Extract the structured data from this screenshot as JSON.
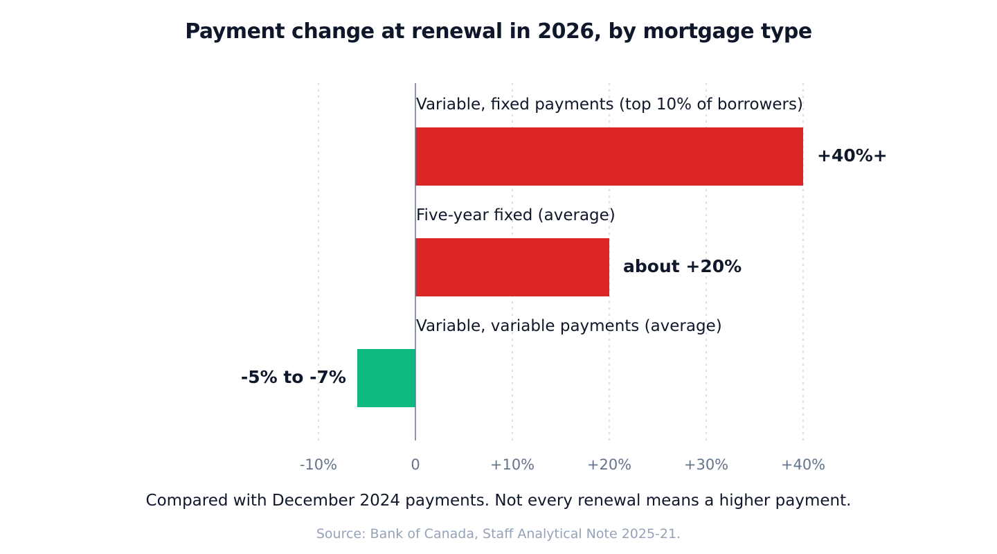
{
  "chart_data": {
    "type": "bar",
    "orientation": "horizontal",
    "title": "Payment change at renewal in 2026, by mortgage type",
    "categories": [
      "Variable, fixed payments (top 10% of borrowers)",
      "Five-year fixed (average)",
      "Variable, variable payments (average)"
    ],
    "values": [
      40,
      20,
      -6
    ],
    "value_labels": [
      "+40%+",
      "about +20%",
      "-5% to -7%"
    ],
    "colors": [
      "#dc2626",
      "#dc2626",
      "#10b981"
    ],
    "xlim": [
      -10,
      40
    ],
    "x_ticks": [
      -10,
      0,
      10,
      20,
      30,
      40
    ],
    "x_tick_labels": [
      "-10%",
      "0",
      "+10%",
      "+20%",
      "+30%",
      "+40%"
    ],
    "grid": "vertical dotted",
    "legend": "none",
    "note": "Compared with December 2024 payments. Not every renewal means a higher payment.",
    "source": "Source: Bank of Canada, Staff Analytical Note 2025-21."
  }
}
